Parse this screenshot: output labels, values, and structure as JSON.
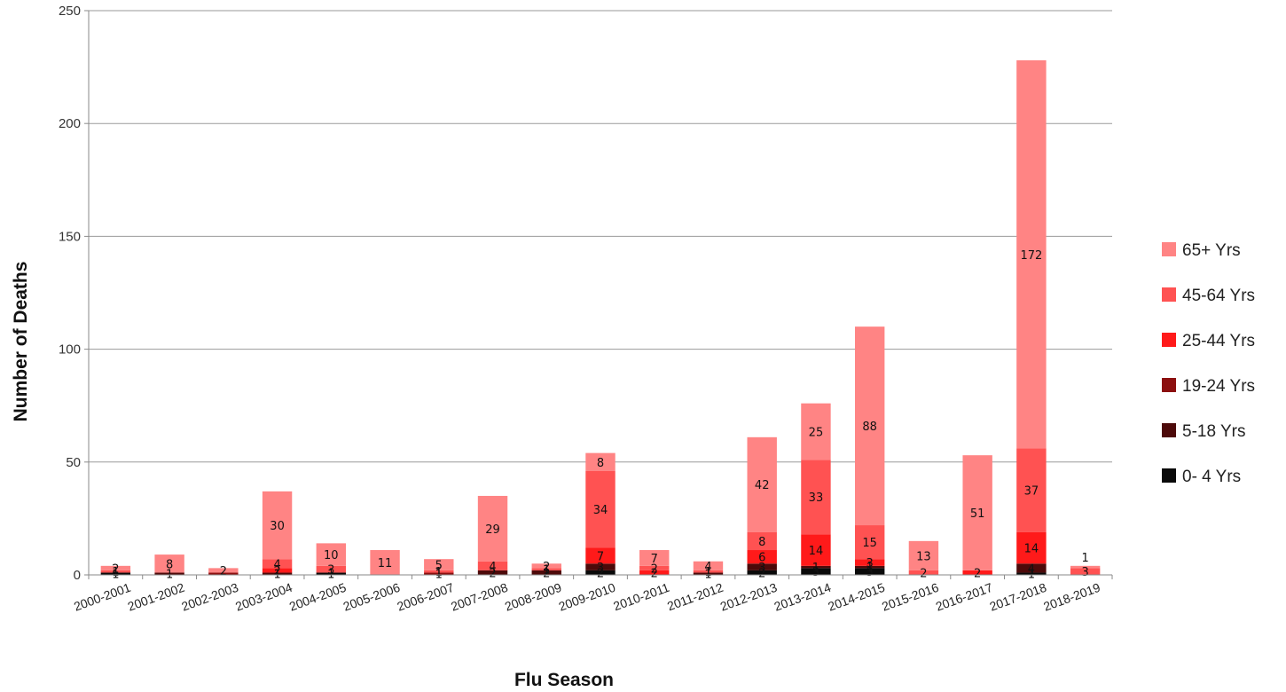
{
  "chart_data": {
    "type": "bar",
    "stacked": true,
    "title": "",
    "xlabel": "Flu Season",
    "ylabel": "Number of Deaths",
    "ylim": [
      0,
      250
    ],
    "yticks": [
      0,
      50,
      100,
      150,
      200,
      250
    ],
    "grid": true,
    "legend_position": "right",
    "categories": [
      "2000-2001",
      "2001-2002",
      "2002-2003",
      "2003-2004",
      "2004-2005",
      "2005-2006",
      "2006-2007",
      "2007-2008",
      "2008-2009",
      "2009-2010",
      "2010-2011",
      "2011-2012",
      "2012-2013",
      "2013-2014",
      "2014-2015",
      "2015-2016",
      "2016-2017",
      "2017-2018",
      "2018-2019"
    ],
    "series": [
      {
        "name": "0- 4 Yrs",
        "color": "#0a0a0a",
        "values": [
          1,
          0,
          0,
          0,
          1,
          0,
          0,
          0,
          0,
          2,
          0,
          0,
          2,
          3,
          3,
          0,
          0,
          1,
          0
        ],
        "labels": [
          "1",
          "",
          "",
          "",
          "1",
          "",
          "",
          "",
          "",
          "2",
          "",
          "",
          "2",
          "3",
          "3",
          "",
          "",
          "1",
          ""
        ]
      },
      {
        "name": "5-18 Yrs",
        "color": "#4d0a0a",
        "values": [
          0,
          1,
          0,
          1,
          0,
          0,
          0,
          2,
          2,
          3,
          0,
          1,
          3,
          1,
          1,
          0,
          0,
          4,
          0
        ],
        "labels": [
          "",
          "1",
          "",
          "1",
          "",
          "",
          "",
          "2",
          "2",
          "3",
          "",
          "1",
          "3",
          "1",
          "1",
          "",
          "",
          "4",
          ""
        ]
      },
      {
        "name": "19-24 Yrs",
        "color": "#8c0f0f",
        "values": [
          0,
          0,
          1,
          0,
          0,
          0,
          1,
          0,
          0,
          0,
          0,
          0,
          0,
          0,
          0,
          0,
          0,
          0,
          0
        ],
        "labels": [
          "",
          "",
          "",
          "",
          "",
          "",
          "1",
          "",
          "",
          "",
          "",
          "",
          "",
          "",
          "",
          "",
          "",
          "",
          ""
        ]
      },
      {
        "name": "25-44 Yrs",
        "color": "#ff1a1a",
        "values": [
          0,
          0,
          0,
          2,
          0,
          0,
          0,
          0,
          0,
          7,
          2,
          0,
          6,
          14,
          3,
          0,
          2,
          14,
          0
        ],
        "labels": [
          "",
          "",
          "",
          "2",
          "",
          "",
          "",
          "",
          "",
          "7",
          "2",
          "",
          "6",
          "14",
          "3",
          "",
          "2",
          "14",
          ""
        ]
      },
      {
        "name": "45-64 Yrs",
        "color": "#ff5252",
        "values": [
          1,
          0,
          0,
          4,
          3,
          0,
          1,
          4,
          1,
          34,
          2,
          1,
          8,
          33,
          15,
          2,
          0,
          37,
          3
        ],
        "labels": [
          "1",
          "",
          "",
          "4",
          "3",
          "",
          "1",
          "4",
          "1",
          "34",
          "2",
          "1",
          "8",
          "33",
          "15",
          "2",
          "",
          "37",
          "3"
        ]
      },
      {
        "name": "65+ Yrs",
        "color": "#ff8484",
        "values": [
          2,
          8,
          2,
          30,
          10,
          11,
          5,
          29,
          2,
          8,
          7,
          4,
          42,
          25,
          88,
          13,
          51,
          172,
          1
        ],
        "labels": [
          "2",
          "8",
          "2",
          "30",
          "10",
          "11",
          "5",
          "29",
          "2",
          "8",
          "7",
          "4",
          "42",
          "25",
          "88",
          "13",
          "51",
          "172",
          "1"
        ]
      }
    ]
  }
}
